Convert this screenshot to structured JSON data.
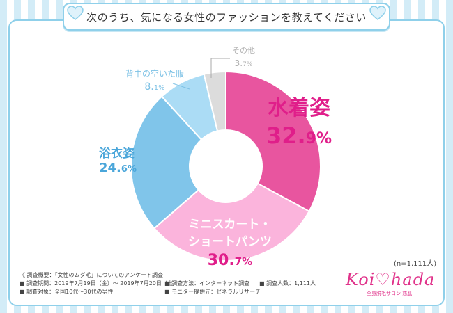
{
  "title": "次のうち、気になる女性のファッションを教えてください",
  "n_label": "(n=1,111人)",
  "logo": {
    "text": "Koi♡hada",
    "subtitle": "全身脱毛サロン 恋肌"
  },
  "survey": {
    "heading": "《 調査概要：「女性のムダ毛」についてのアンケート調査",
    "period": "■ 調査期間：2019年7月19日（金）～ 2019年7月20日（土）",
    "method": "■ 調査方法：インターネット調査",
    "count": "■ 調査人数：1,111人",
    "target": "■ 調査対象：全国10代～30代の男性",
    "provider": "■ モニター提供元：ゼネラルリサーチ"
  },
  "colors": {
    "swimsuit": "#e8559f",
    "miniskirt": "#fbb4dc",
    "yukata": "#80c5ea",
    "backless": "#abdcf5",
    "other": "#dcdcdc"
  },
  "chart_data": {
    "type": "pie",
    "donut": true,
    "categories": [
      "水着姿",
      "ミニスカート・ショートパンツ",
      "浴衣姿",
      "背中の空いた服",
      "その他"
    ],
    "values": [
      32.9,
      30.7,
      24.6,
      8.1,
      3.7
    ],
    "labels": {
      "swimsuit": {
        "name": "水着姿",
        "int": "32.",
        "dec": "9",
        "pct": "%"
      },
      "miniskirt": {
        "name1": "ミニスカート・",
        "name2": "ショートパンツ",
        "int": "30.",
        "dec": "7",
        "pct": "%"
      },
      "yukata": {
        "name": "浴衣姿",
        "int": "24.",
        "dec": "6",
        "pct": "%"
      },
      "backless": {
        "name": "背中の空いた服",
        "int": "8.",
        "dec": "1",
        "pct": "%"
      },
      "other": {
        "name": "その他",
        "int": "3.",
        "dec": "7",
        "pct": "%"
      }
    }
  }
}
